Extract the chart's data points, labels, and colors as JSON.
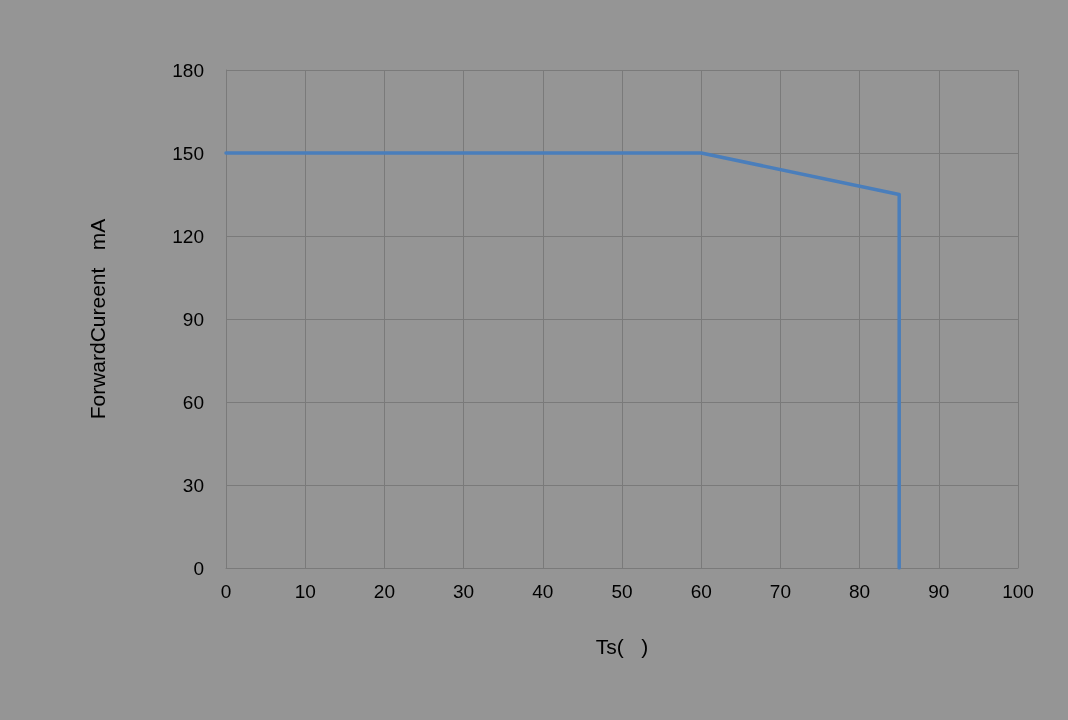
{
  "chart_data": {
    "type": "line",
    "xlabel": "Ts(   )",
    "ylabel": "ForwardCureent   mA",
    "x": [
      0,
      60,
      85,
      85
    ],
    "series": [
      {
        "color": "#4a7ebb",
        "values": [
          150,
          150,
          135,
          0
        ]
      }
    ],
    "xlim": [
      0,
      100
    ],
    "xticks": [
      0,
      10,
      20,
      30,
      40,
      50,
      60,
      70,
      80,
      90,
      100
    ],
    "ylim": [
      0,
      180
    ],
    "yticks": [
      0,
      30,
      60,
      90,
      120,
      150,
      180
    ],
    "grid": true,
    "marker": "none",
    "line_style": "solid"
  }
}
